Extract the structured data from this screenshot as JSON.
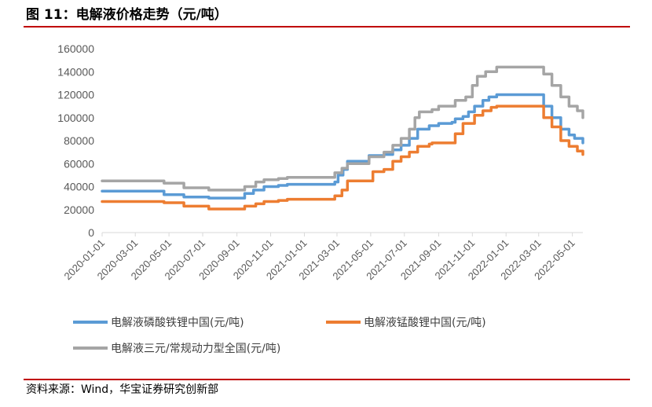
{
  "figure_title": "图 11：电解液价格走势（元/吨）",
  "source_note": "资料来源：Wind，华宝证券研究创新部",
  "chart_data": {
    "type": "line",
    "ylim": [
      0,
      160000
    ],
    "yticks": [
      "0",
      "20000",
      "40000",
      "60000",
      "80000",
      "100000",
      "120000",
      "140000",
      "160000"
    ],
    "xlim": [
      "2020-01-01",
      "2022-05-20"
    ],
    "xticks": [
      "2020-01-01",
      "2020-03-01",
      "2020-05-01",
      "2020-07-01",
      "2020-09-01",
      "2020-11-01",
      "2021-01-01",
      "2021-03-01",
      "2021-05-01",
      "2021-07-01",
      "2021-09-01",
      "2021-11-01",
      "2022-01-01",
      "2022-03-01",
      "2022-05-01"
    ],
    "legend_position": "bottom",
    "series": [
      {
        "name": "电解液磷酸铁锂中国(元/吨)",
        "color": "#5b9bd5",
        "points": [
          [
            "2020-01-01",
            36000
          ],
          [
            "2020-04-20",
            36000
          ],
          [
            "2020-04-22",
            33000
          ],
          [
            "2020-05-25",
            33000
          ],
          [
            "2020-05-28",
            31000
          ],
          [
            "2020-07-10",
            31000
          ],
          [
            "2020-07-12",
            30000
          ],
          [
            "2020-09-01",
            30000
          ],
          [
            "2020-09-15",
            34000
          ],
          [
            "2020-10-01",
            37000
          ],
          [
            "2020-10-20",
            40000
          ],
          [
            "2020-11-15",
            41000
          ],
          [
            "2020-12-01",
            42000
          ],
          [
            "2021-02-05",
            42000
          ],
          [
            "2021-02-25",
            44000
          ],
          [
            "2021-03-03",
            50000
          ],
          [
            "2021-03-12",
            55000
          ],
          [
            "2021-03-20",
            62000
          ],
          [
            "2021-04-20",
            62000
          ],
          [
            "2021-04-28",
            67000
          ],
          [
            "2021-05-25",
            68000
          ],
          [
            "2021-06-10",
            72000
          ],
          [
            "2021-06-25",
            76000
          ],
          [
            "2021-07-10",
            82000
          ],
          [
            "2021-07-25",
            90000
          ],
          [
            "2021-08-15",
            93000
          ],
          [
            "2021-09-01",
            95000
          ],
          [
            "2021-09-25",
            96000
          ],
          [
            "2021-10-01",
            99000
          ],
          [
            "2021-10-15",
            101000
          ],
          [
            "2021-10-25",
            105000
          ],
          [
            "2021-11-05",
            110000
          ],
          [
            "2021-11-20",
            115000
          ],
          [
            "2021-12-01",
            118000
          ],
          [
            "2021-12-15",
            120000
          ],
          [
            "2022-03-01",
            120000
          ],
          [
            "2022-03-10",
            110000
          ],
          [
            "2022-03-25",
            100000
          ],
          [
            "2022-04-10",
            90000
          ],
          [
            "2022-04-25",
            85000
          ],
          [
            "2022-05-05",
            82000
          ],
          [
            "2022-05-20",
            78000
          ]
        ]
      },
      {
        "name": "电解液锰酸锂中国(元/吨)",
        "color": "#ed7d31",
        "points": [
          [
            "2020-01-01",
            27000
          ],
          [
            "2020-04-20",
            27000
          ],
          [
            "2020-04-22",
            26000
          ],
          [
            "2020-05-25",
            26000
          ],
          [
            "2020-05-28",
            23000
          ],
          [
            "2020-07-10",
            23000
          ],
          [
            "2020-07-12",
            20500
          ],
          [
            "2020-09-01",
            20500
          ],
          [
            "2020-09-15",
            23000
          ],
          [
            "2020-10-05",
            25000
          ],
          [
            "2020-10-20",
            27000
          ],
          [
            "2020-11-15",
            28000
          ],
          [
            "2020-12-01",
            29000
          ],
          [
            "2021-02-05",
            29000
          ],
          [
            "2021-02-25",
            32000
          ],
          [
            "2021-03-10",
            37000
          ],
          [
            "2021-03-20",
            45000
          ],
          [
            "2021-04-25",
            45000
          ],
          [
            "2021-05-05",
            53000
          ],
          [
            "2021-05-25",
            55000
          ],
          [
            "2021-06-10",
            62000
          ],
          [
            "2021-06-25",
            66000
          ],
          [
            "2021-07-10",
            70000
          ],
          [
            "2021-07-25",
            75000
          ],
          [
            "2021-08-15",
            77000
          ],
          [
            "2021-08-20",
            78000
          ],
          [
            "2021-09-20",
            78000
          ],
          [
            "2021-10-01",
            86000
          ],
          [
            "2021-10-15",
            95000
          ],
          [
            "2021-11-05",
            102000
          ],
          [
            "2021-11-20",
            106000
          ],
          [
            "2021-12-05",
            109000
          ],
          [
            "2021-12-15",
            110000
          ],
          [
            "2022-03-01",
            110000
          ],
          [
            "2022-03-10",
            100000
          ],
          [
            "2022-03-25",
            92000
          ],
          [
            "2022-04-10",
            80000
          ],
          [
            "2022-04-25",
            75000
          ],
          [
            "2022-05-10",
            71000
          ],
          [
            "2022-05-20",
            68000
          ]
        ]
      },
      {
        "name": "电解液三元/常规动力型全国(元/吨)",
        "color": "#a5a5a5",
        "points": [
          [
            "2020-01-01",
            45000
          ],
          [
            "2020-04-20",
            45000
          ],
          [
            "2020-04-22",
            43000
          ],
          [
            "2020-05-25",
            43000
          ],
          [
            "2020-05-28",
            39000
          ],
          [
            "2020-07-10",
            39000
          ],
          [
            "2020-07-12",
            37000
          ],
          [
            "2020-09-01",
            37000
          ],
          [
            "2020-09-15",
            40000
          ],
          [
            "2020-10-05",
            44000
          ],
          [
            "2020-10-20",
            46000
          ],
          [
            "2020-11-15",
            47000
          ],
          [
            "2020-12-01",
            48000
          ],
          [
            "2021-02-05",
            48000
          ],
          [
            "2021-02-25",
            52000
          ],
          [
            "2021-03-10",
            56000
          ],
          [
            "2021-03-20",
            60000
          ],
          [
            "2021-04-20",
            60000
          ],
          [
            "2021-04-28",
            66000
          ],
          [
            "2021-05-25",
            70000
          ],
          [
            "2021-06-10",
            76000
          ],
          [
            "2021-06-25",
            82000
          ],
          [
            "2021-07-10",
            90000
          ],
          [
            "2021-07-20",
            100000
          ],
          [
            "2021-07-28",
            105000
          ],
          [
            "2021-08-20",
            107000
          ],
          [
            "2021-09-01",
            110000
          ],
          [
            "2021-10-01",
            115000
          ],
          [
            "2021-10-20",
            118000
          ],
          [
            "2021-11-01",
            128000
          ],
          [
            "2021-11-10",
            136000
          ],
          [
            "2021-11-25",
            140000
          ],
          [
            "2021-12-15",
            144000
          ],
          [
            "2022-03-01",
            144000
          ],
          [
            "2022-03-10",
            138000
          ],
          [
            "2022-03-25",
            128000
          ],
          [
            "2022-04-10",
            118000
          ],
          [
            "2022-04-25",
            110000
          ],
          [
            "2022-05-10",
            106000
          ],
          [
            "2022-05-20",
            100000
          ]
        ]
      }
    ]
  }
}
